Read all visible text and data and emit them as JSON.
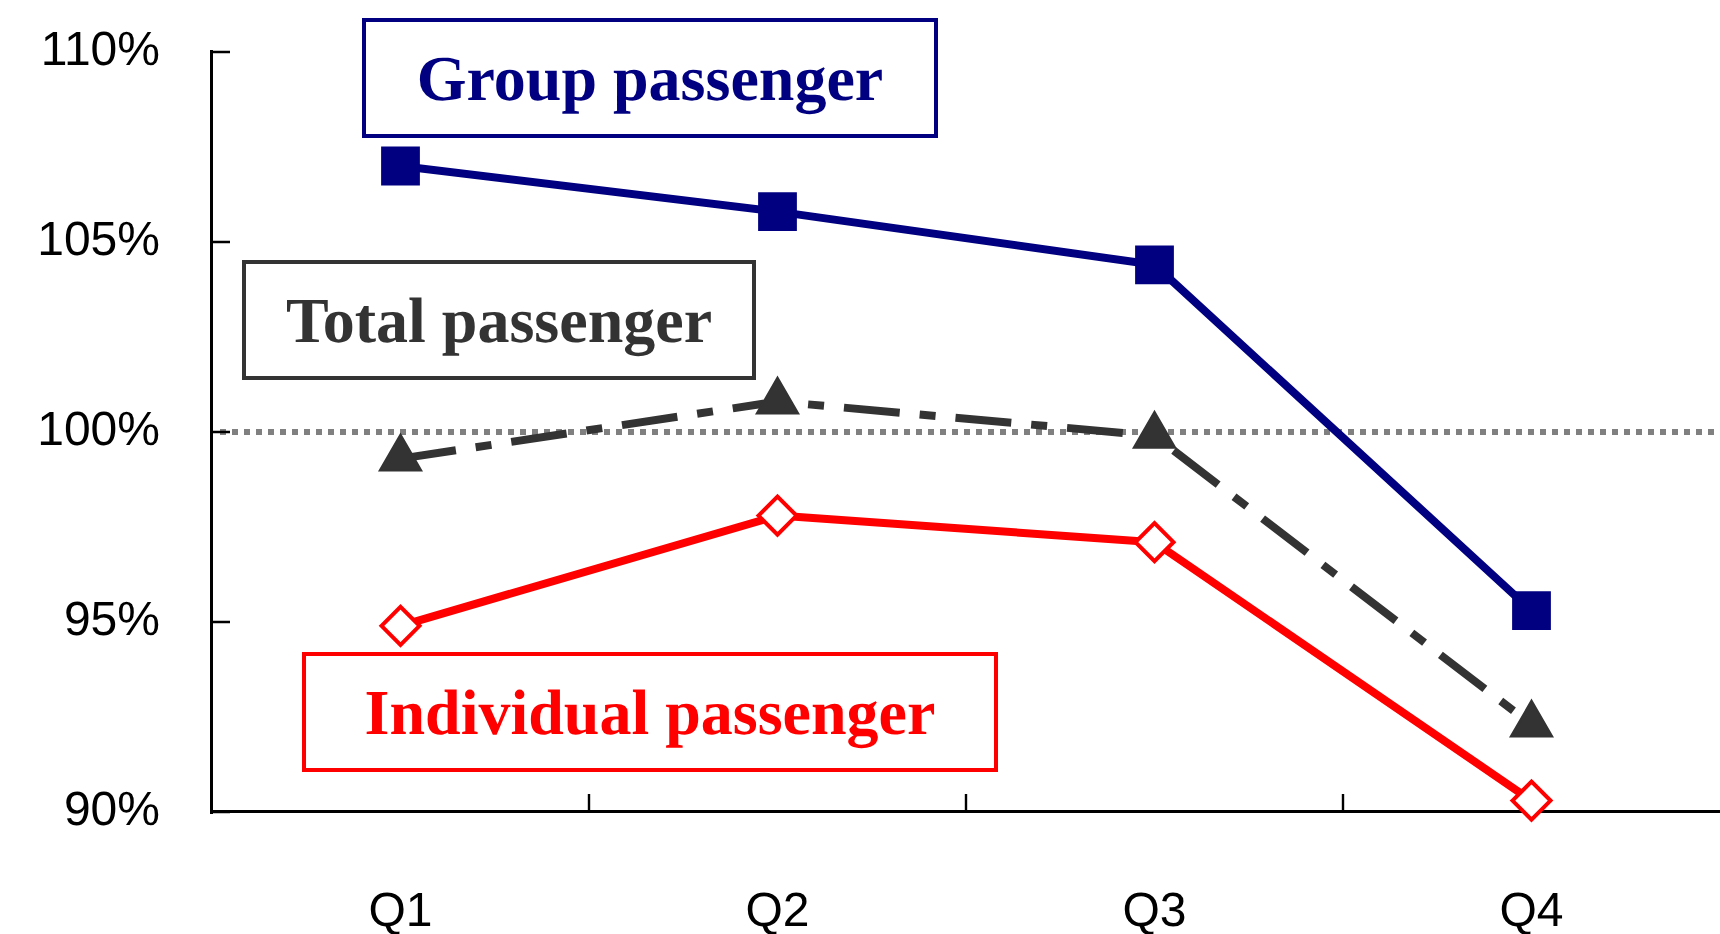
{
  "chart_data": {
    "type": "line",
    "categories": [
      "Q1",
      "Q2",
      "Q3",
      "Q4"
    ],
    "series": [
      {
        "name": "Group passenger",
        "color": "#000080",
        "values": [
          107.0,
          105.8,
          104.4,
          95.3
        ],
        "marker": "square",
        "line_style": "solid"
      },
      {
        "name": "Total passenger",
        "color": "#333333",
        "values": [
          99.3,
          100.8,
          99.9,
          92.3
        ],
        "marker": "triangle",
        "line_style": "dashed"
      },
      {
        "name": "Individual passenger",
        "color": "#ff0000",
        "values": [
          94.9,
          97.8,
          97.1,
          90.3
        ],
        "marker": "diamond",
        "line_style": "solid"
      }
    ],
    "ylim": [
      90,
      110
    ],
    "yticks": [
      {
        "value": 90,
        "label": "90%"
      },
      {
        "value": 95,
        "label": "95%"
      },
      {
        "value": 100,
        "label": "100%"
      },
      {
        "value": 105,
        "label": "105%"
      },
      {
        "value": 110,
        "label": "110%"
      }
    ],
    "ref_lines": [
      {
        "axis": "y",
        "value": 100,
        "color": "#808080",
        "line_style": "dotted"
      }
    ],
    "grid": false
  }
}
